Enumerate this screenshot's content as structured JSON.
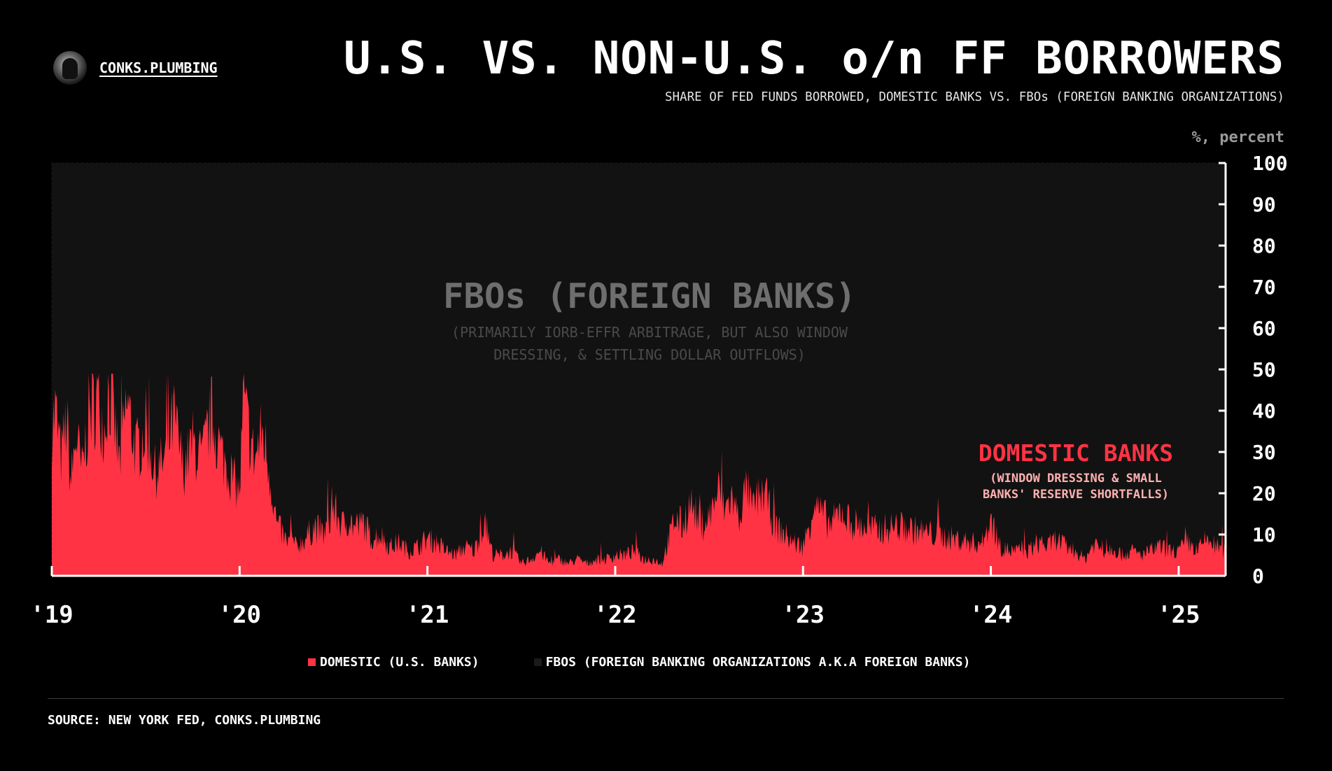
{
  "brand": {
    "name": "CONKS.PLUMBING",
    "avatar_icon": "masked-figure-avatar"
  },
  "header": {
    "title": "U.S. VS. NON-U.S. o/n FF BORROWERS",
    "subtitle": "SHARE OF FED FUNDS BORROWED, DOMESTIC BANKS VS. FBOs (FOREIGN BANKING ORGANIZATIONS)",
    "unit_label": "%, percent"
  },
  "annotations": {
    "fbo_title": "FBOs (FOREIGN BANKS)",
    "fbo_note_line1": "(PRIMARILY IORB-EFFR ARBITRAGE, BUT ALSO WINDOW",
    "fbo_note_line2": "DRESSING, & SETTLING DOLLAR OUTFLOWS)",
    "domestic_title": "DOMESTIC BANKS",
    "domestic_note_line1": "(WINDOW DRESSING & SMALL",
    "domestic_note_line2": "BANKS' RESERVE SHORTFALLS)"
  },
  "legend": {
    "domestic": "DOMESTIC (U.S. BANKS)",
    "fbos": "FBOS (FOREIGN BANKING ORGANIZATIONS A.K.A FOREIGN BANKS)"
  },
  "footer": {
    "source": "SOURCE: NEW YORK FED, CONKS.PLUMBING"
  },
  "colors": {
    "background": "#000000",
    "plot_background": "#121212",
    "domestic": "#ff3344",
    "fbo": "#121212",
    "domestic_label": "#ff3344",
    "domestic_note": "#ffb0b0",
    "fbo_label": "#6e6e6e",
    "fbo_note": "#4a4a4a"
  },
  "chart_data": {
    "type": "area",
    "stacked": true,
    "x_unit": "year",
    "xlim": [
      2019.0,
      2025.25
    ],
    "ylim": [
      0,
      100
    ],
    "y_ticks": [
      0,
      10,
      20,
      30,
      40,
      50,
      60,
      70,
      80,
      90,
      100
    ],
    "x_ticks": [
      {
        "value": 2019,
        "label": "'19"
      },
      {
        "value": 2020,
        "label": "'20"
      },
      {
        "value": 2021,
        "label": "'21"
      },
      {
        "value": 2022,
        "label": "'22"
      },
      {
        "value": 2023,
        "label": "'23"
      },
      {
        "value": 2024,
        "label": "'24"
      },
      {
        "value": 2025,
        "label": "'25"
      }
    ],
    "y_axis_side": "right",
    "grid": true,
    "legend_position": "bottom",
    "series": [
      {
        "name": "DOMESTIC (U.S. BANKS)",
        "x": [
          2019.0,
          2019.02,
          2019.05,
          2019.08,
          2019.1,
          2019.13,
          2019.16,
          2019.2,
          2019.25,
          2019.28,
          2019.3,
          2019.33,
          2019.36,
          2019.4,
          2019.45,
          2019.5,
          2019.55,
          2019.6,
          2019.65,
          2019.7,
          2019.75,
          2019.8,
          2019.85,
          2019.9,
          2019.95,
          2020.0,
          2020.02,
          2020.04,
          2020.08,
          2020.12,
          2020.15,
          2020.18,
          2020.2,
          2020.23,
          2020.25,
          2020.28,
          2020.3,
          2020.35,
          2020.4,
          2020.45,
          2020.5,
          2020.55,
          2020.58,
          2020.62,
          2020.66,
          2020.7,
          2020.75,
          2020.8,
          2020.85,
          2020.9,
          2020.95,
          2021.0,
          2021.05,
          2021.1,
          2021.15,
          2021.2,
          2021.25,
          2021.3,
          2021.35,
          2021.4,
          2021.45,
          2021.5,
          2021.55,
          2021.6,
          2021.65,
          2021.7,
          2021.75,
          2021.8,
          2021.85,
          2021.9,
          2021.95,
          2022.0,
          2022.05,
          2022.1,
          2022.15,
          2022.2,
          2022.25,
          2022.28,
          2022.32,
          2022.36,
          2022.4,
          2022.45,
          2022.5,
          2022.55,
          2022.58,
          2022.62,
          2022.66,
          2022.7,
          2022.73,
          2022.76,
          2022.8,
          2022.85,
          2022.9,
          2022.95,
          2023.0,
          2023.03,
          2023.06,
          2023.1,
          2023.15,
          2023.2,
          2023.25,
          2023.3,
          2023.4,
          2023.5,
          2023.6,
          2023.7,
          2023.8,
          2023.9,
          2023.96,
          2024.0,
          2024.05,
          2024.1,
          2024.2,
          2024.25,
          2024.3,
          2024.35,
          2024.4,
          2024.45,
          2024.5,
          2024.55,
          2024.6,
          2024.65,
          2024.7,
          2024.75,
          2024.8,
          2024.85,
          2024.9,
          2024.95,
          2025.0,
          2025.05,
          2025.1,
          2025.15,
          2025.2,
          2025.25
        ],
        "values": [
          36,
          40,
          28,
          38,
          22,
          34,
          25,
          40,
          43,
          35,
          46,
          38,
          27,
          42,
          30,
          36,
          25,
          28,
          38,
          26,
          32,
          28,
          39,
          30,
          25,
          20,
          42,
          37,
          28,
          35,
          28,
          18,
          12,
          10,
          8,
          9,
          7,
          9,
          12,
          10,
          16,
          12,
          14,
          11,
          13,
          9,
          10,
          7,
          8,
          6,
          7,
          9,
          8,
          6,
          5,
          7,
          6,
          13,
          5,
          5,
          6,
          3,
          4,
          6,
          3,
          4,
          3,
          4,
          3,
          4,
          4,
          5,
          5,
          6,
          4,
          4,
          3,
          8,
          14,
          12,
          18,
          12,
          14,
          21,
          16,
          19,
          14,
          22,
          16,
          19,
          20,
          12,
          10,
          8,
          7,
          12,
          18,
          15,
          12,
          16,
          13,
          12,
          11,
          12,
          11,
          10,
          9,
          8,
          8,
          14,
          7,
          6,
          6,
          8,
          7,
          9,
          7,
          6,
          4,
          8,
          6,
          7,
          5,
          6,
          5,
          6,
          7,
          6,
          6,
          8,
          6,
          9,
          7,
          6
        ]
      },
      {
        "name": "FBOS (FOREIGN BANKING ORGANIZATIONS A.K.A FOREIGN BANKS)",
        "values_are": "100 minus domestic"
      }
    ]
  }
}
